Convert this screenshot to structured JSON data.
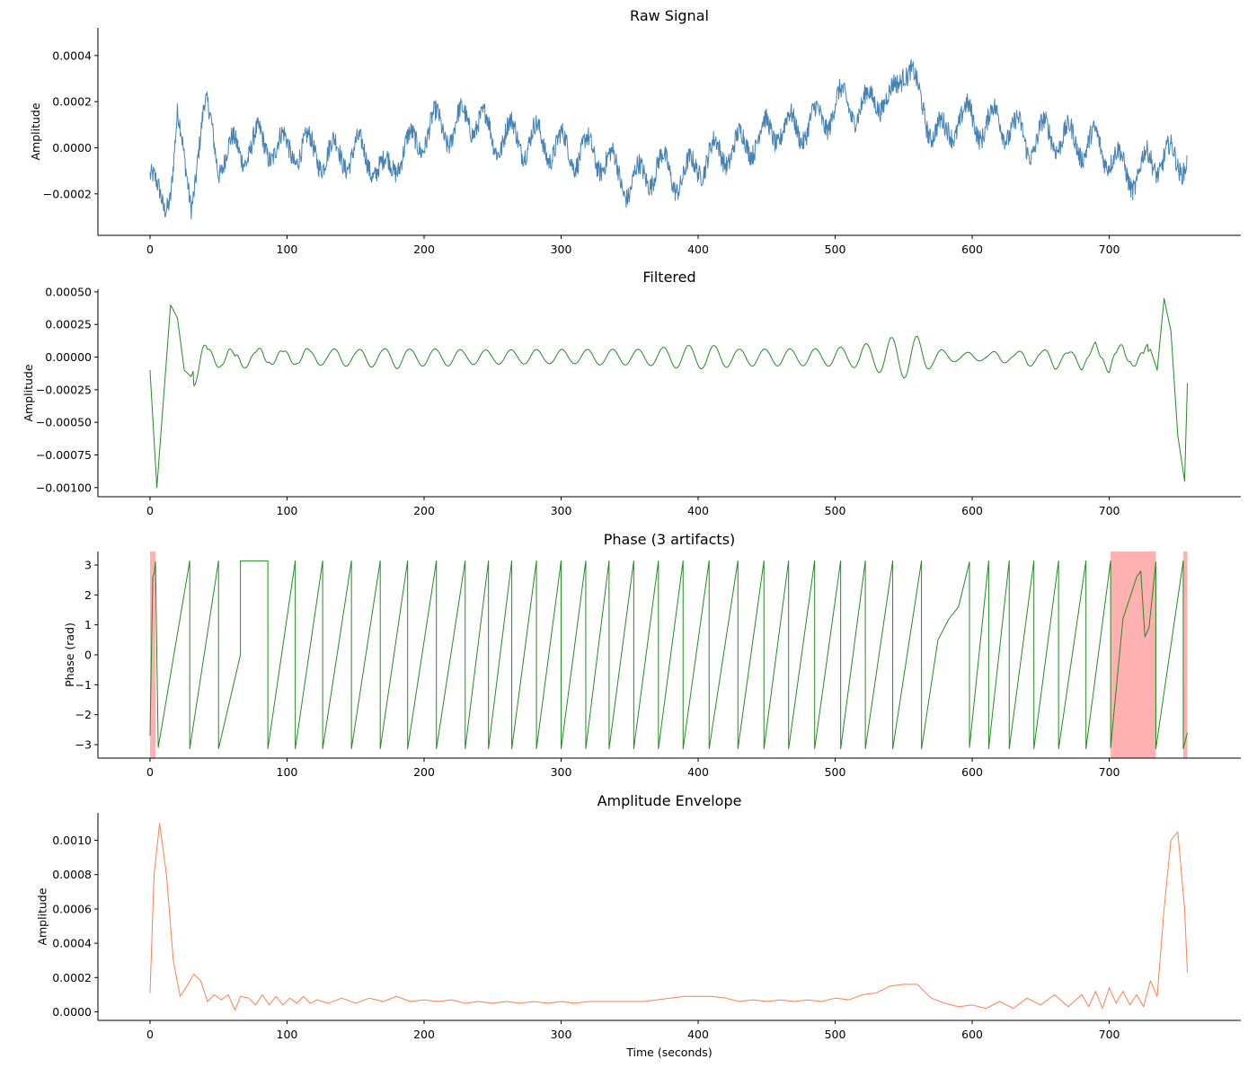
{
  "chart_data": [
    {
      "type": "line",
      "title": "Raw Signal",
      "xlabel": "",
      "ylabel": "Amplitude",
      "xlim": [
        -38,
        796
      ],
      "ylim": [
        -0.00038,
        0.00052
      ],
      "xticks": [
        0,
        100,
        200,
        300,
        400,
        500,
        600,
        700
      ],
      "xtick_labels": [
        "0",
        "100",
        "200",
        "300",
        "400",
        "500",
        "600",
        "700"
      ],
      "yticks": [
        -0.0002,
        0.0,
        0.0002,
        0.0004
      ],
      "ytick_labels": [
        "−0.0002",
        "0.0000",
        "0.0002",
        "0.0004"
      ],
      "grid": false,
      "color": "#4682b4",
      "series": [
        {
          "x": [
            0,
            5,
            10,
            15,
            20,
            25,
            30,
            35,
            40,
            45,
            50,
            60,
            70,
            80,
            90,
            100,
            110,
            120,
            130,
            140,
            150,
            160,
            170,
            180,
            190,
            200,
            210,
            220,
            230,
            240,
            250,
            260,
            270,
            280,
            290,
            300,
            310,
            320,
            330,
            340,
            350,
            360,
            370,
            380,
            390,
            400,
            410,
            420,
            430,
            440,
            450,
            460,
            470,
            480,
            490,
            500,
            510,
            520,
            530,
            540,
            545,
            550,
            555,
            560,
            570,
            580,
            590,
            600,
            610,
            620,
            630,
            640,
            650,
            660,
            670,
            680,
            690,
            700,
            710,
            720,
            730,
            740,
            750,
            757
          ],
          "values": [
            -0.00012,
            -0.00022,
            -0.00025,
            -0.00015,
            0.00012,
            -0.0001,
            -0.00022,
            0.0,
            0.00015,
            8e-05,
            -5e-05,
            -2e-05,
            0.0,
            2e-05,
            1e-05,
            -1e-05,
            0.0,
            -2e-05,
            -3e-05,
            -3e-05,
            -2e-05,
            -4e-05,
            -0.00012,
            -4e-05,
            0.0,
            6e-05,
            0.0001,
            7e-05,
            0.00012,
            0.00013,
            3e-05,
            6e-05,
            3e-05,
            4e-05,
            1e-05,
            0.0,
            -2e-05,
            -2e-05,
            -4e-05,
            -0.0001,
            -0.00017,
            -0.00012,
            -8e-05,
            -0.00011,
            -0.00014,
            -6e-05,
            -4e-05,
            -1e-05,
            0.0,
            4e-05,
            6e-05,
            9e-05,
            8e-05,
            0.0001,
            0.00012,
            0.00018,
            0.0002,
            0.00015,
            0.00024,
            0.00018,
            0.00026,
            0.00038,
            0.00034,
            0.00021,
            0.0001,
            4e-05,
            0.00014,
            0.00011,
            0.0001,
            0.00012,
            8e-05,
            2e-05,
            5e-05,
            6e-05,
            3e-05,
            2e-05,
            1e-05,
            -2e-05,
            -0.0001,
            -0.00012,
            -6e-05,
            -4e-05,
            -7e-05,
            -2e-05
          ]
        }
      ]
    },
    {
      "type": "line",
      "title": "Filtered",
      "xlabel": "",
      "ylabel": "Amplitude",
      "xlim": [
        -38,
        796
      ],
      "ylim": [
        -0.00107,
        0.00052
      ],
      "xticks": [
        0,
        100,
        200,
        300,
        400,
        500,
        600,
        700
      ],
      "xtick_labels": [
        "0",
        "100",
        "200",
        "300",
        "400",
        "500",
        "600",
        "700"
      ],
      "yticks": [
        -0.001,
        -0.00075,
        -0.0005,
        -0.00025,
        0.0,
        0.00025,
        0.0005
      ],
      "ytick_labels": [
        "−0.00100",
        "−0.00075",
        "−0.00050",
        "−0.00025",
        "0.00000",
        "0.00025",
        "0.00050"
      ],
      "grid": false,
      "color": "#228b22",
      "series": [
        {
          "x": [
            0,
            5,
            10,
            15,
            20,
            25,
            30,
            40,
            50,
            60,
            70,
            80,
            90,
            100,
            110,
            120,
            130,
            140,
            150,
            160,
            170,
            180,
            190,
            200,
            210,
            220,
            230,
            240,
            250,
            260,
            270,
            280,
            290,
            300,
            310,
            320,
            330,
            340,
            350,
            360,
            370,
            380,
            390,
            400,
            410,
            420,
            430,
            440,
            450,
            460,
            470,
            480,
            490,
            500,
            510,
            520,
            530,
            540,
            545,
            550,
            555,
            560,
            570,
            580,
            590,
            600,
            610,
            620,
            630,
            640,
            650,
            660,
            670,
            680,
            690,
            700,
            710,
            720,
            730,
            735,
            740,
            745,
            750,
            755,
            757
          ],
          "values": [
            -0.0001,
            -0.001,
            -0.0003,
            0.0004,
            0.0003,
            -0.0001,
            -0.00015,
            0.00012,
            -5e-05,
            5e-05,
            -5e-05,
            6e-05,
            -5e-05,
            6e-05,
            -5e-05,
            6e-05,
            -5e-05,
            6e-05,
            -5e-05,
            6e-05,
            -5e-05,
            6e-05,
            -5e-05,
            6e-05,
            -5e-05,
            6e-05,
            -5e-05,
            6e-05,
            -5e-05,
            6e-05,
            -5e-05,
            6e-05,
            -5e-05,
            6e-05,
            -5e-05,
            6e-05,
            -5e-05,
            6e-05,
            -5e-05,
            6e-05,
            -5e-05,
            6e-05,
            -6e-05,
            8e-05,
            -6e-05,
            7e-05,
            -6e-05,
            8e-05,
            -6e-05,
            8e-05,
            -6e-05,
            9e-05,
            -8e-05,
            0.0001,
            -8e-05,
            0.0001,
            0.00012,
            -0.00012,
            0.0001,
            0.00015,
            -5e-05,
            3e-05,
            4e-05,
            0.0,
            0.0,
            -2e-05,
            2e-05,
            -4e-05,
            5e-05,
            -5e-05,
            6e-05,
            -5e-05,
            5e-05,
            -5e-05,
            5e-05,
            -5e-05,
            5e-05,
            -5e-05,
            6e-05,
            -0.0001,
            0.00045,
            0.0002,
            -0.0006,
            -0.00095,
            -0.0002
          ]
        }
      ]
    },
    {
      "type": "line",
      "title": "Phase (3 artifacts)",
      "xlabel": "",
      "ylabel": "Phase (rad)",
      "xlim": [
        -38,
        796
      ],
      "ylim": [
        -3.45,
        3.45
      ],
      "xticks": [
        0,
        100,
        200,
        300,
        400,
        500,
        600,
        700
      ],
      "xtick_labels": [
        "0",
        "100",
        "200",
        "300",
        "400",
        "500",
        "600",
        "700"
      ],
      "yticks": [
        -3,
        -2,
        -1,
        0,
        1,
        2,
        3
      ],
      "ytick_labels": [
        "−3",
        "−2",
        "−1",
        "0",
        "1",
        "2",
        "3"
      ],
      "grid": false,
      "color": "#228b22",
      "artifact_color": "#ffb0b0",
      "artifacts": [
        {
          "start": 0,
          "end": 4
        },
        {
          "start": 701,
          "end": 734
        },
        {
          "start": 754,
          "end": 757
        }
      ],
      "cycle_ends": [
        29,
        50,
        66,
        86,
        106,
        126,
        147,
        168,
        188,
        209,
        230,
        247,
        264,
        282,
        300,
        318,
        335,
        353,
        371,
        389,
        408,
        429,
        448,
        466,
        485,
        504,
        522,
        542,
        563,
        598,
        612,
        627,
        645,
        663,
        683,
        701,
        734,
        754
      ],
      "series": [
        {
          "x": [
            0,
            2,
            3,
            4,
            6,
            29,
            29.01,
            50,
            50.01,
            66,
            66.01,
            86,
            86.01,
            106,
            106.01,
            126,
            126.01,
            147,
            147.01,
            168,
            168.01,
            188,
            188.01,
            209,
            209.01,
            230,
            230.01,
            247,
            247.01,
            264,
            264.01,
            282,
            282.01,
            300,
            300.01,
            318,
            318.01,
            335,
            335.01,
            353,
            353.01,
            371,
            371.01,
            389,
            389.01,
            408,
            408.01,
            429,
            429.01,
            448,
            448.01,
            466,
            466.01,
            485,
            485.01,
            504,
            504.01,
            522,
            522.01,
            542,
            542.01,
            563,
            563.01,
            575,
            583,
            590,
            598,
            598.01,
            612,
            612.01,
            627,
            627.01,
            645,
            645.01,
            663,
            663.01,
            683,
            683.01,
            701,
            701.01,
            710,
            720,
            723,
            726,
            729,
            734,
            734.01,
            754,
            754.01,
            757
          ],
          "values": [
            -2.7,
            2.6,
            2.7,
            3.1,
            -3.1,
            3.14,
            -3.14,
            3.14,
            -3.14,
            0.0,
            3.14,
            3.14,
            -3.14,
            3.14,
            -3.14,
            3.14,
            -3.14,
            3.14,
            -3.14,
            3.14,
            -3.14,
            3.14,
            -3.14,
            3.14,
            -3.14,
            3.14,
            -3.14,
            3.14,
            -3.14,
            3.14,
            -3.14,
            3.14,
            -3.14,
            3.14,
            -3.14,
            3.14,
            -3.14,
            3.14,
            -3.14,
            3.14,
            -3.14,
            3.14,
            -3.14,
            3.14,
            -3.14,
            3.14,
            -3.14,
            3.14,
            -3.14,
            3.14,
            -3.14,
            3.14,
            -3.14,
            3.14,
            -3.14,
            3.14,
            -3.14,
            3.14,
            -3.14,
            3.14,
            -3.14,
            3.14,
            -3.14,
            0.5,
            1.2,
            1.6,
            3.1,
            -3.1,
            3.14,
            -3.14,
            3.14,
            -3.14,
            3.14,
            -3.14,
            3.14,
            -3.14,
            3.14,
            -3.14,
            3.14,
            -3.1,
            1.2,
            2.6,
            2.8,
            0.6,
            0.9,
            3.1,
            -3.14,
            3.14,
            -3.14,
            -2.6
          ]
        }
      ]
    },
    {
      "type": "line",
      "title": "Amplitude Envelope",
      "xlabel": "Time (seconds)",
      "ylabel": "Amplitude",
      "xlim": [
        -38,
        796
      ],
      "ylim": [
        -5e-05,
        0.00116
      ],
      "xticks": [
        0,
        100,
        200,
        300,
        400,
        500,
        600,
        700
      ],
      "xtick_labels": [
        "0",
        "100",
        "200",
        "300",
        "400",
        "500",
        "600",
        "700"
      ],
      "yticks": [
        0.0,
        0.0002,
        0.0004,
        0.0006,
        0.0008,
        0.001
      ],
      "ytick_labels": [
        "0.0000",
        "0.0002",
        "0.0004",
        "0.0006",
        "0.0008",
        "0.0010"
      ],
      "grid": false,
      "color": "#ff7f50",
      "series": [
        {
          "x": [
            0,
            3,
            7,
            12,
            17,
            22,
            27,
            32,
            37,
            42,
            47,
            52,
            57,
            62,
            66,
            72,
            77,
            82,
            87,
            92,
            97,
            102,
            107,
            112,
            117,
            122,
            130,
            140,
            150,
            160,
            170,
            180,
            190,
            200,
            210,
            220,
            230,
            240,
            250,
            260,
            270,
            280,
            290,
            300,
            310,
            320,
            330,
            340,
            350,
            360,
            370,
            380,
            390,
            400,
            410,
            420,
            430,
            440,
            450,
            460,
            470,
            480,
            490,
            500,
            510,
            520,
            530,
            540,
            550,
            560,
            570,
            580,
            590,
            600,
            610,
            620,
            630,
            640,
            650,
            660,
            670,
            680,
            685,
            690,
            695,
            700,
            705,
            710,
            715,
            720,
            725,
            730,
            735,
            740,
            745,
            750,
            755,
            757
          ],
          "values": [
            0.00011,
            0.0008,
            0.0011,
            0.0008,
            0.0003,
            9e-05,
            0.00015,
            0.00022,
            0.00018,
            6e-05,
            0.0001,
            7e-05,
            0.0001,
            1e-05,
            9e-05,
            8e-05,
            4e-05,
            0.0001,
            4e-05,
            9e-05,
            4e-05,
            8e-05,
            5e-05,
            9e-05,
            5e-05,
            7e-05,
            5e-05,
            8e-05,
            5e-05,
            8e-05,
            6e-05,
            9e-05,
            6e-05,
            7e-05,
            6e-05,
            7e-05,
            5e-05,
            6e-05,
            5e-05,
            6e-05,
            5e-05,
            6e-05,
            5e-05,
            6e-05,
            5e-05,
            6e-05,
            6e-05,
            6e-05,
            6e-05,
            6e-05,
            7e-05,
            8e-05,
            9e-05,
            9e-05,
            9e-05,
            8e-05,
            6e-05,
            7e-05,
            6e-05,
            7e-05,
            6e-05,
            7e-05,
            6e-05,
            8e-05,
            7e-05,
            0.0001,
            0.00011,
            0.00015,
            0.00016,
            0.00016,
            8e-05,
            5e-05,
            3e-05,
            4e-05,
            2e-05,
            6e-05,
            2e-05,
            8e-05,
            4e-05,
            0.0001,
            3e-05,
            0.0001,
            3e-05,
            0.00012,
            2e-05,
            0.00014,
            5e-05,
            0.00012,
            4e-05,
            0.0001,
            3e-05,
            0.00018,
            9e-05,
            0.0006,
            0.001,
            0.00105,
            0.0006,
            0.00023
          ]
        }
      ]
    }
  ]
}
